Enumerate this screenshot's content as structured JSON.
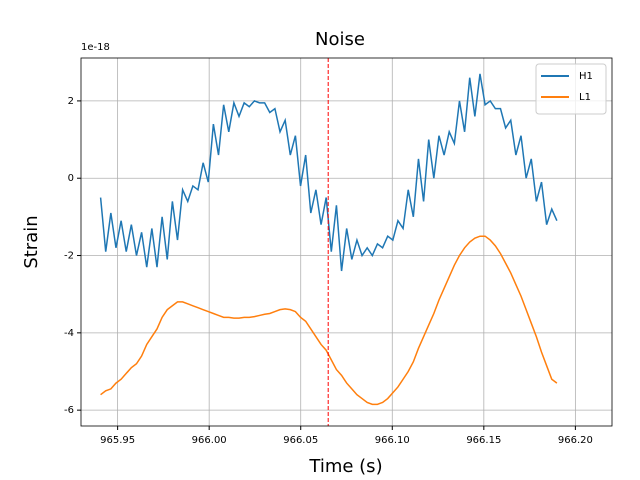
{
  "chart_data": {
    "type": "line",
    "title": "Noise",
    "xlabel": "Time (s)",
    "ylabel": "Strain",
    "y_offset_label": "1e-18",
    "x": [
      965.9407,
      965.9435,
      965.9463,
      965.9491,
      965.9519,
      965.9547,
      965.9575,
      965.9603,
      965.9631,
      965.9659,
      965.9687,
      965.9715,
      965.9743,
      965.9771,
      965.9799,
      965.9827,
      965.9855,
      965.9883,
      965.9911,
      965.9939,
      965.9967,
      965.9995,
      966.0023,
      966.0051,
      966.0079,
      966.0107,
      966.0135,
      966.0163,
      966.0191,
      966.0219,
      966.0247,
      966.0275,
      966.0303,
      966.0331,
      966.0359,
      966.0387,
      966.0415,
      966.0443,
      966.0471,
      966.0499,
      966.0527,
      966.0555,
      966.0583,
      966.0611,
      966.0639,
      966.0667,
      966.0695,
      966.0723,
      966.0751,
      966.0779,
      966.0807,
      966.0835,
      966.0863,
      966.0891,
      966.0919,
      966.0947,
      966.0975,
      966.1003,
      966.1031,
      966.1059,
      966.1087,
      966.1115,
      966.1143,
      966.1171,
      966.1199,
      966.1227,
      966.1255,
      966.1283,
      966.1311,
      966.1339,
      966.1367,
      966.1395,
      966.1423,
      966.1451,
      966.1479,
      966.1507,
      966.1535,
      966.1563,
      966.1591,
      966.1619,
      966.1647,
      966.1675,
      966.1703,
      966.1731,
      966.1759,
      966.1787,
      966.1815,
      966.1843,
      966.1871,
      966.1899
    ],
    "series": [
      {
        "name": "H1",
        "color": "#1f77b4",
        "values": [
          -0.5,
          -1.9,
          -0.9,
          -1.8,
          -1.1,
          -1.9,
          -1.2,
          -2.0,
          -1.4,
          -2.3,
          -1.3,
          -2.3,
          -1.0,
          -2.1,
          -0.6,
          -1.6,
          -0.3,
          -0.6,
          -0.2,
          -0.3,
          0.4,
          -0.1,
          1.4,
          0.6,
          1.9,
          1.2,
          1.95,
          1.6,
          1.95,
          1.85,
          2.0,
          1.95,
          1.95,
          1.7,
          1.8,
          1.2,
          1.5,
          0.6,
          1.1,
          -0.2,
          0.6,
          -0.9,
          -0.3,
          -1.2,
          -0.5,
          -1.9,
          -0.7,
          -2.4,
          -1.3,
          -2.1,
          -1.6,
          -2.0,
          -1.8,
          -2.0,
          -1.7,
          -1.8,
          -1.5,
          -1.6,
          -1.1,
          -1.3,
          -0.3,
          -1.0,
          0.5,
          -0.6,
          1.0,
          0.0,
          1.1,
          0.6,
          1.2,
          0.9,
          2.0,
          1.2,
          2.6,
          1.6,
          2.7,
          1.9,
          2.0,
          1.8,
          1.8,
          1.3,
          1.5,
          0.6,
          1.1,
          0.0,
          0.5,
          -0.6,
          -0.1,
          -1.2,
          -0.8,
          -1.1
        ]
      },
      {
        "name": "L1",
        "color": "#ff7f0e",
        "values": [
          -5.6,
          -5.5,
          -5.45,
          -5.3,
          -5.2,
          -5.05,
          -4.9,
          -4.8,
          -4.6,
          -4.3,
          -4.1,
          -3.9,
          -3.6,
          -3.4,
          -3.3,
          -3.2,
          -3.2,
          -3.25,
          -3.3,
          -3.35,
          -3.4,
          -3.45,
          -3.5,
          -3.55,
          -3.6,
          -3.6,
          -3.62,
          -3.62,
          -3.6,
          -3.6,
          -3.58,
          -3.55,
          -3.52,
          -3.5,
          -3.45,
          -3.4,
          -3.38,
          -3.4,
          -3.45,
          -3.6,
          -3.7,
          -3.9,
          -4.1,
          -4.3,
          -4.45,
          -4.7,
          -4.95,
          -5.1,
          -5.3,
          -5.45,
          -5.6,
          -5.7,
          -5.8,
          -5.85,
          -5.85,
          -5.8,
          -5.7,
          -5.55,
          -5.4,
          -5.2,
          -5.0,
          -4.75,
          -4.4,
          -4.1,
          -3.8,
          -3.5,
          -3.15,
          -2.85,
          -2.55,
          -2.25,
          -2.0,
          -1.8,
          -1.65,
          -1.55,
          -1.5,
          -1.5,
          -1.6,
          -1.75,
          -1.95,
          -2.2,
          -2.45,
          -2.75,
          -3.05,
          -3.4,
          -3.75,
          -4.1,
          -4.5,
          -4.85,
          -5.2,
          -5.3
        ]
      }
    ],
    "vline": {
      "x": 966.065,
      "color": "red"
    },
    "xlim": [
      965.93,
      966.22
    ],
    "ylim": [
      -6.41,
      3.11
    ],
    "xticks": [
      {
        "value": 965.95,
        "label": "965.95"
      },
      {
        "value": 966.0,
        "label": "966.00"
      },
      {
        "value": 966.05,
        "label": "966.05"
      },
      {
        "value": 966.1,
        "label": "966.10"
      },
      {
        "value": 966.15,
        "label": "966.15"
      },
      {
        "value": 966.2,
        "label": "966.20"
      }
    ],
    "yticks": [
      -6,
      -4,
      -2,
      0,
      2
    ],
    "grid": true,
    "legend": "upper right"
  }
}
